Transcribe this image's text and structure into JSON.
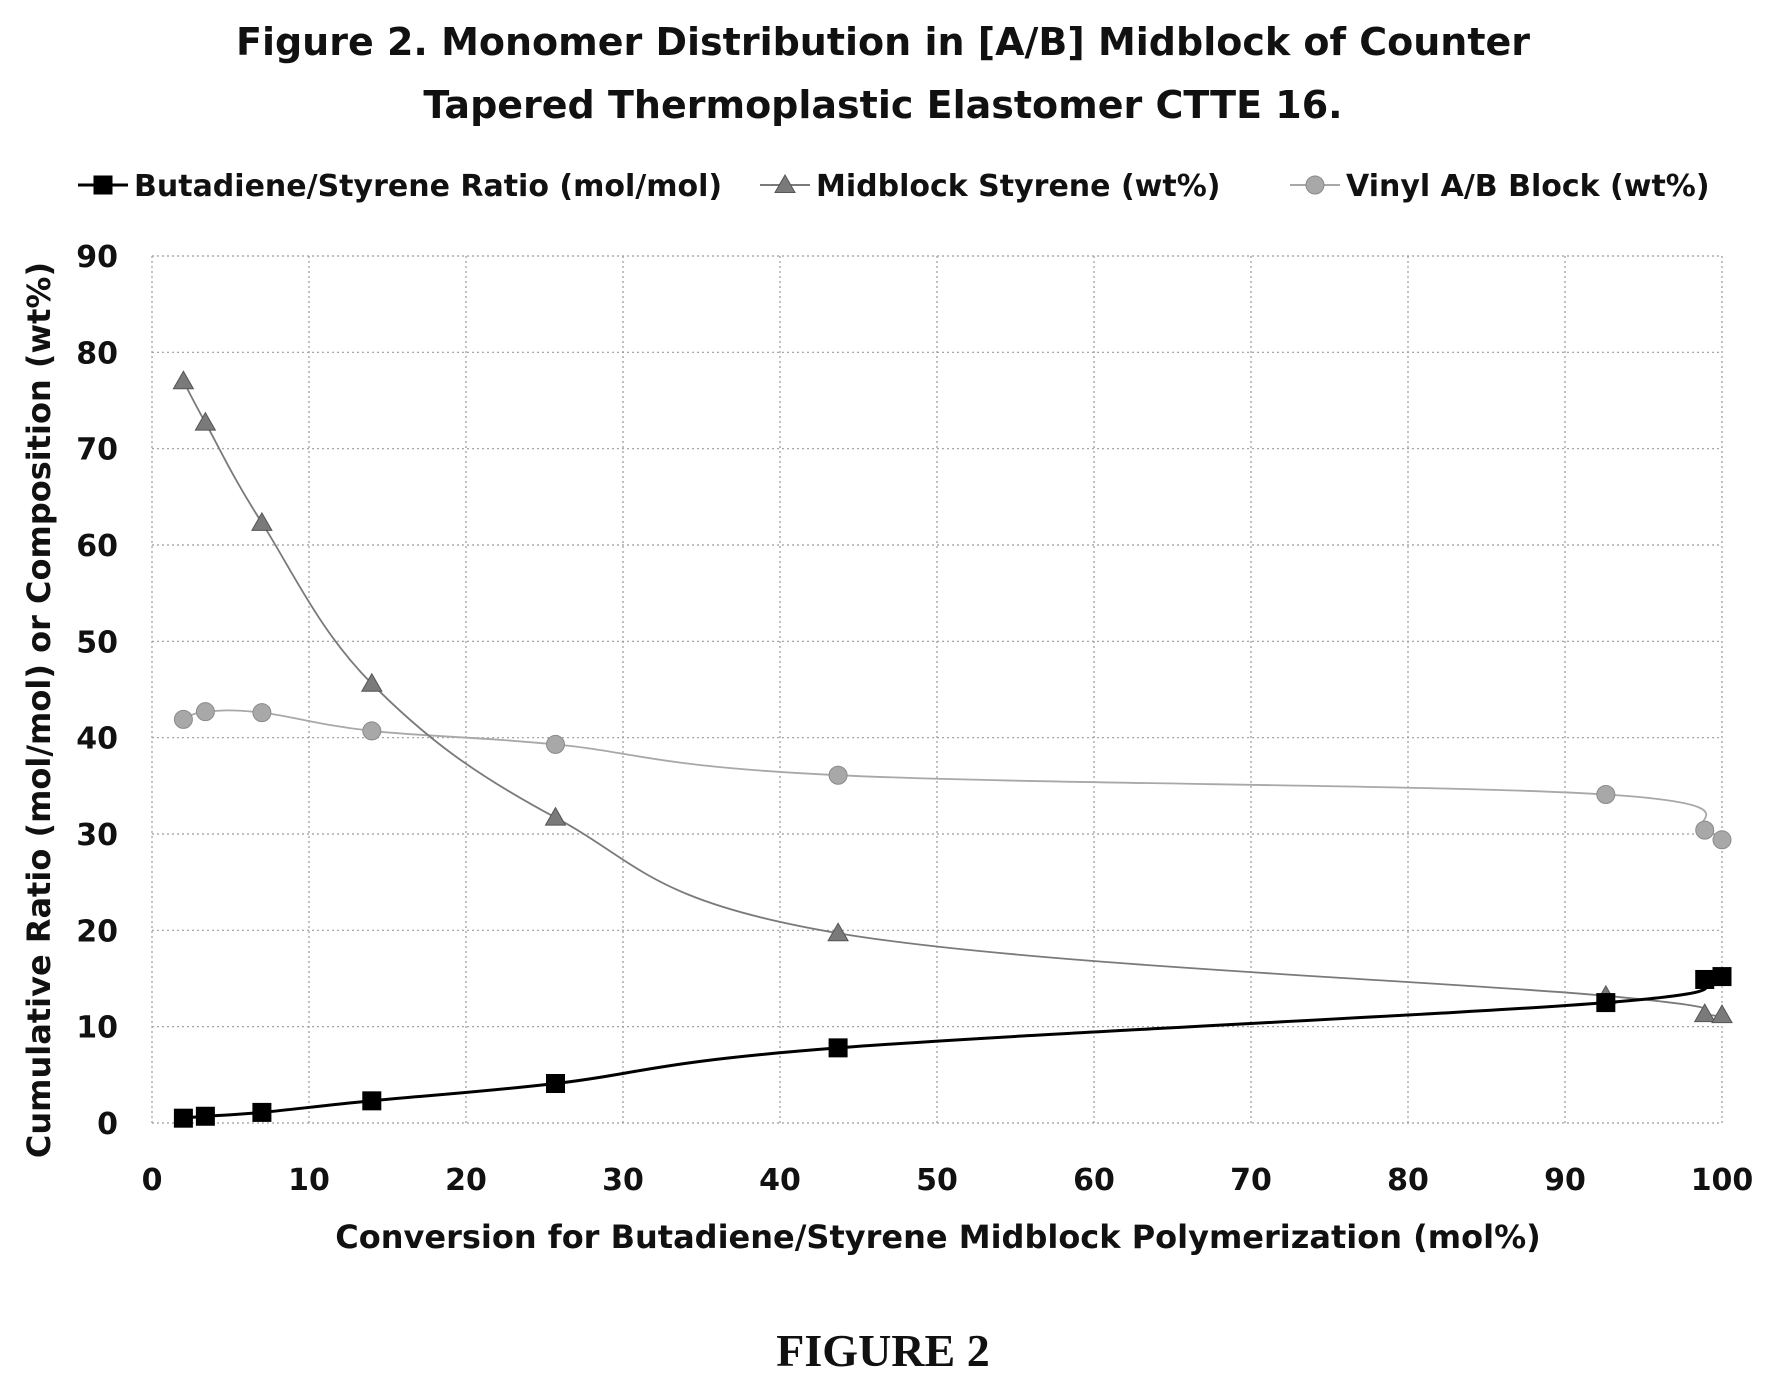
{
  "chart_data": {
    "type": "line",
    "title_line1": "Figure 2. Monomer Distribution in [A/B] Midblock of Counter",
    "title_line2": "Tapered Thermoplastic Elastomer CTTE 16.",
    "xlabel": "Conversion for Butadiene/Styrene Midblock Polymerization (mol%)",
    "ylabel": "Cumulative Ratio (mol/mol) or Composition (wt%)",
    "xlim": [
      0,
      100
    ],
    "ylim": [
      0,
      90
    ],
    "x_ticks": [
      0,
      10,
      20,
      30,
      40,
      50,
      60,
      70,
      80,
      90,
      100
    ],
    "y_ticks": [
      0,
      10,
      20,
      30,
      40,
      50,
      60,
      70,
      80,
      90
    ],
    "grid": true,
    "legend_position": "top",
    "caption": "FIGURE 2",
    "series": [
      {
        "name": "Butadiene/Styrene Ratio (mol/mol)",
        "marker": "square",
        "color": "#000000",
        "x": [
          2,
          3.4,
          7,
          14,
          25.7,
          43.7,
          92.6,
          98.9,
          100
        ],
        "y": [
          0.5,
          0.7,
          1.1,
          2.3,
          4.1,
          7.8,
          12.5,
          14.9,
          15.2
        ]
      },
      {
        "name": "Midblock Styrene (wt%)",
        "marker": "triangle",
        "color": "#7a7a7a",
        "x": [
          2,
          3.4,
          7,
          14,
          25.7,
          43.7,
          92.6,
          98.9,
          100
        ],
        "y": [
          77,
          72.7,
          62.3,
          45.6,
          31.7,
          19.7,
          13.2,
          11.3,
          11.2
        ]
      },
      {
        "name": "Vinyl A/B Block (wt%)",
        "marker": "circle",
        "color": "#a8a8a8",
        "x": [
          2,
          3.4,
          7,
          14,
          25.7,
          43.7,
          92.6,
          98.9,
          100
        ],
        "y": [
          41.9,
          42.7,
          42.6,
          40.7,
          39.3,
          36.1,
          34.1,
          30.4,
          29.4
        ]
      }
    ]
  }
}
